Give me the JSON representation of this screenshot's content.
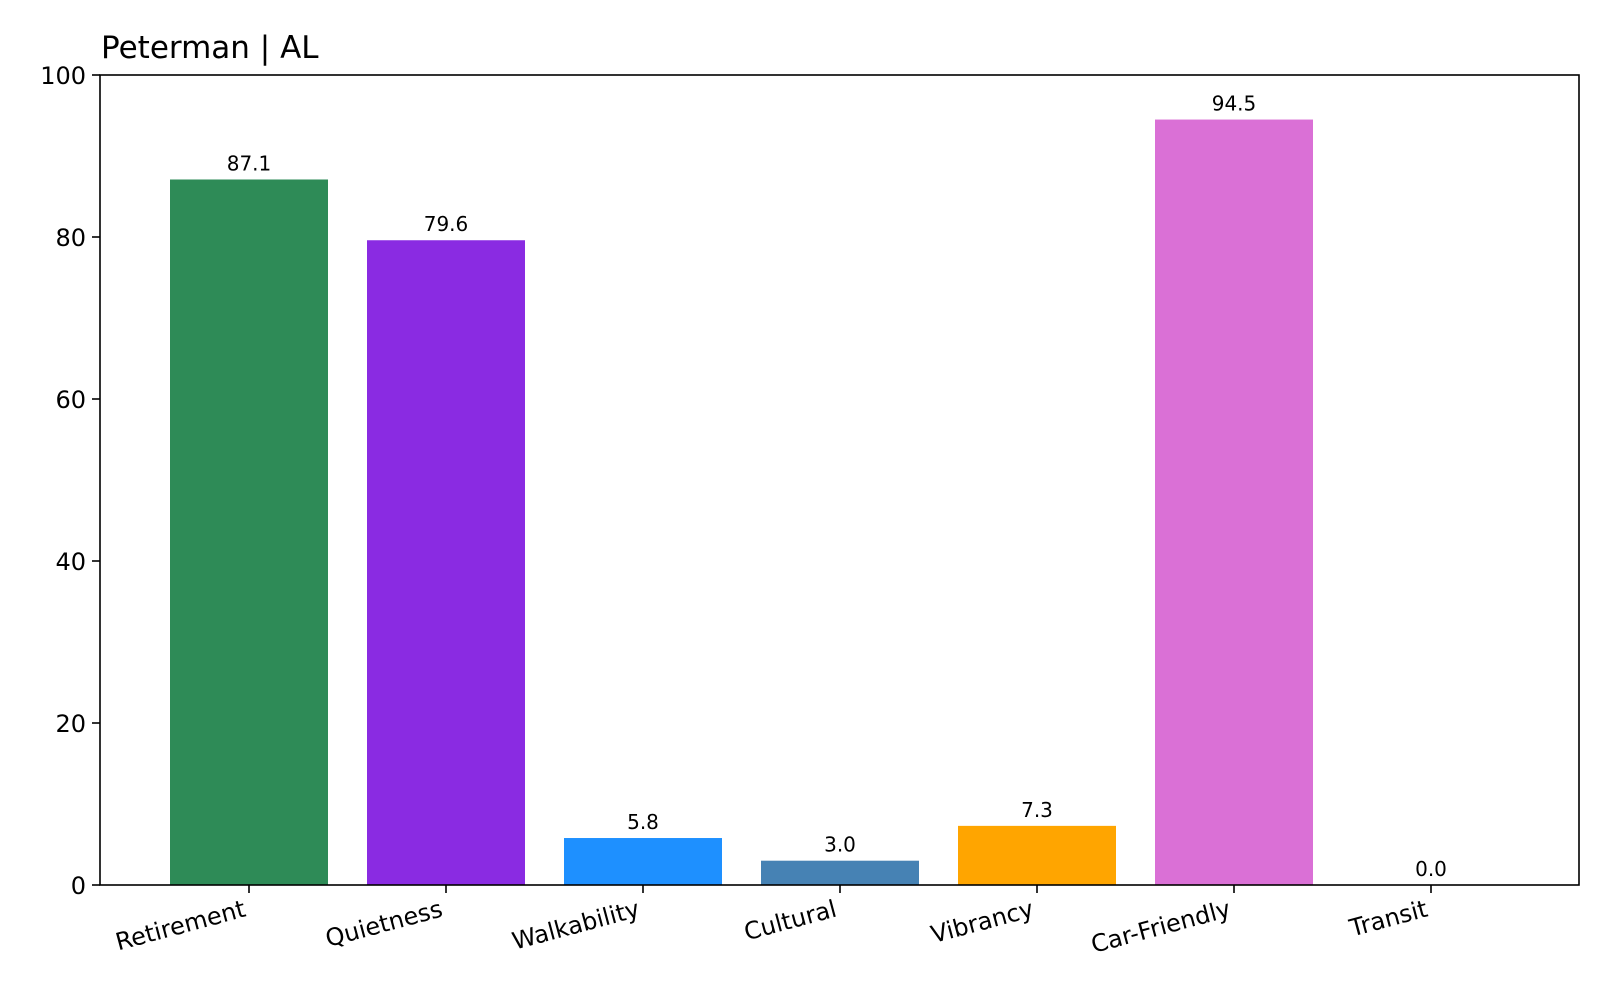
{
  "chart_data": {
    "type": "bar",
    "title": "Peterman | AL",
    "xlabel": "",
    "ylabel": "",
    "categories": [
      "Retirement",
      "Quietness",
      "Walkability",
      "Cultural",
      "Vibrancy",
      "Car-Friendly",
      "Transit"
    ],
    "values": [
      87.1,
      79.6,
      5.8,
      3.0,
      7.3,
      94.5,
      0.0
    ],
    "value_labels": [
      "87.1",
      "79.6",
      "5.8",
      "3.0",
      "7.3",
      "94.5",
      "0.0"
    ],
    "colors": [
      "#2e8b57",
      "#8a2be2",
      "#1e90ff",
      "#4682b4",
      "#ffa500",
      "#da70d6",
      "#888888"
    ],
    "ylim": [
      0,
      100
    ],
    "yticks": [
      0,
      20,
      40,
      60,
      80,
      100
    ],
    "ytick_labels": [
      "0",
      "20",
      "40",
      "60",
      "80",
      "100"
    ],
    "grid": false,
    "legend": "none",
    "xtick_rotation_deg": 15
  }
}
